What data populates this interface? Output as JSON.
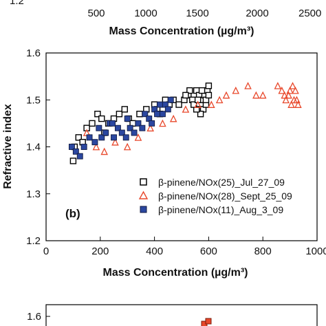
{
  "top_panel": {
    "xticks": [
      "500",
      "1000",
      "1500",
      "2000",
      "2500"
    ],
    "yticks": [
      "1.2"
    ],
    "xlabel": "Mass Concentration (µg/m³)"
  },
  "bottom_panel": {
    "yticks": [
      "1.6"
    ]
  },
  "chart_data": {
    "type": "scatter",
    "panel_label": "(b)",
    "xlabel": "Mass Concentration (µg/m³)",
    "ylabel": "Refractive index",
    "xlim": [
      0,
      1000
    ],
    "ylim": [
      1.2,
      1.6
    ],
    "xticks": [
      0,
      200,
      400,
      600,
      800,
      1000
    ],
    "yticks": [
      1.2,
      1.3,
      1.4,
      1.5,
      1.6
    ],
    "legend_position": "lower-right",
    "series": [
      {
        "name": "β-pinene/NOx(25)_Jul_27_09",
        "marker": "open-square",
        "color": "#000000",
        "points": [
          [
            100,
            1.37
          ],
          [
            105,
            1.4
          ],
          [
            120,
            1.42
          ],
          [
            135,
            1.41
          ],
          [
            150,
            1.44
          ],
          [
            170,
            1.45
          ],
          [
            190,
            1.47
          ],
          [
            205,
            1.46
          ],
          [
            215,
            1.43
          ],
          [
            230,
            1.45
          ],
          [
            250,
            1.46
          ],
          [
            270,
            1.47
          ],
          [
            290,
            1.48
          ],
          [
            305,
            1.46
          ],
          [
            320,
            1.45
          ],
          [
            345,
            1.47
          ],
          [
            370,
            1.48
          ],
          [
            400,
            1.49
          ],
          [
            410,
            1.48
          ],
          [
            420,
            1.47
          ],
          [
            440,
            1.5
          ],
          [
            455,
            1.49
          ],
          [
            470,
            1.5
          ],
          [
            490,
            1.49
          ],
          [
            510,
            1.5
          ],
          [
            525,
            1.51
          ],
          [
            540,
            1.5
          ],
          [
            555,
            1.52
          ],
          [
            565,
            1.51
          ],
          [
            575,
            1.5
          ],
          [
            585,
            1.51
          ],
          [
            595,
            1.52
          ],
          [
            600,
            1.53
          ],
          [
            580,
            1.48
          ],
          [
            590,
            1.49
          ],
          [
            570,
            1.47
          ],
          [
            555,
            1.48
          ],
          [
            545,
            1.49
          ],
          [
            560,
            1.5
          ],
          [
            575,
            1.52
          ],
          [
            590,
            1.5
          ],
          [
            600,
            1.51
          ],
          [
            530,
            1.52
          ],
          [
            515,
            1.51
          ]
        ]
      },
      {
        "name": "β-pinene/NOx(28)_Sept_25_09",
        "marker": "open-triangle",
        "color": "#e8472a",
        "points": [
          [
            150,
            1.43
          ],
          [
            185,
            1.4
          ],
          [
            215,
            1.39
          ],
          [
            255,
            1.41
          ],
          [
            300,
            1.4
          ],
          [
            340,
            1.42
          ],
          [
            385,
            1.44
          ],
          [
            430,
            1.45
          ],
          [
            470,
            1.46
          ],
          [
            515,
            1.48
          ],
          [
            560,
            1.49
          ],
          [
            610,
            1.49
          ],
          [
            640,
            1.5
          ],
          [
            665,
            1.51
          ],
          [
            700,
            1.52
          ],
          [
            745,
            1.53
          ],
          [
            775,
            1.51
          ],
          [
            800,
            1.51
          ],
          [
            855,
            1.53
          ],
          [
            870,
            1.52
          ],
          [
            885,
            1.5
          ],
          [
            895,
            1.51
          ],
          [
            905,
            1.49
          ],
          [
            915,
            1.5
          ],
          [
            920,
            1.52
          ],
          [
            925,
            1.5
          ],
          [
            930,
            1.49
          ],
          [
            900,
            1.52
          ],
          [
            880,
            1.51
          ],
          [
            910,
            1.53
          ]
        ]
      },
      {
        "name": "β-pinene/NOx(11)_Aug_3_09",
        "marker": "filled-square",
        "color": "#2b47a0",
        "points": [
          [
            95,
            1.4
          ],
          [
            110,
            1.39
          ],
          [
            125,
            1.38
          ],
          [
            140,
            1.4
          ],
          [
            160,
            1.42
          ],
          [
            180,
            1.41
          ],
          [
            195,
            1.44
          ],
          [
            205,
            1.42
          ],
          [
            220,
            1.43
          ],
          [
            235,
            1.45
          ],
          [
            250,
            1.42
          ],
          [
            265,
            1.44
          ],
          [
            280,
            1.43
          ],
          [
            295,
            1.42
          ],
          [
            310,
            1.44
          ],
          [
            325,
            1.43
          ],
          [
            340,
            1.45
          ],
          [
            355,
            1.44
          ],
          [
            365,
            1.47
          ],
          [
            380,
            1.46
          ],
          [
            390,
            1.45
          ],
          [
            400,
            1.48
          ],
          [
            410,
            1.47
          ],
          [
            420,
            1.49
          ],
          [
            430,
            1.47
          ],
          [
            440,
            1.49
          ],
          [
            450,
            1.48
          ],
          [
            460,
            1.5
          ],
          [
            245,
            1.45
          ],
          [
            300,
            1.46
          ]
        ]
      }
    ]
  }
}
